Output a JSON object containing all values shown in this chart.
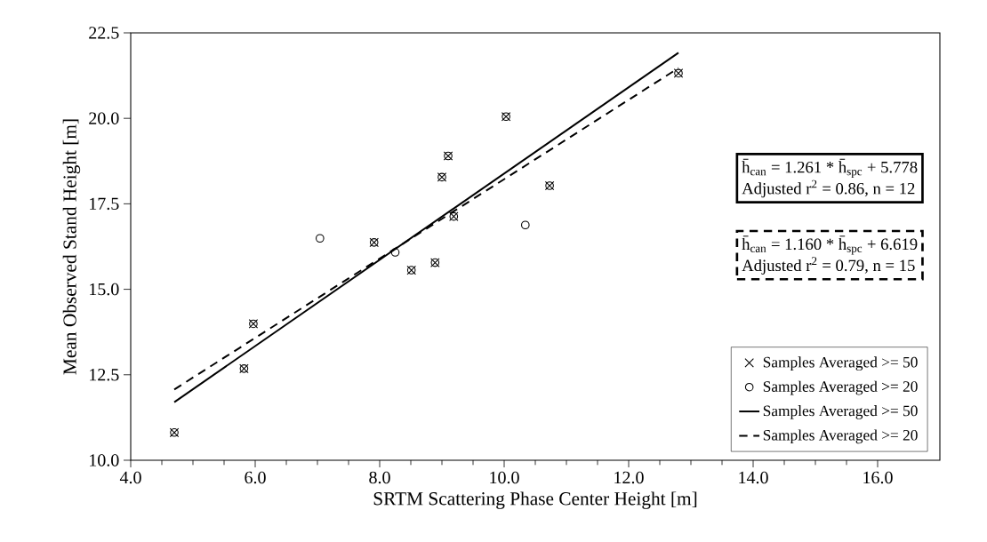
{
  "chart_data": {
    "type": "scatter",
    "xlabel": "SRTM Scattering Phase Center Height  [m]",
    "ylabel": "Mean Observed Stand Height [m]",
    "xlim": [
      4,
      17
    ],
    "ylim": [
      10,
      22.5
    ],
    "xticks": [
      {
        "value": 4,
        "label": "4.0"
      },
      {
        "value": 6,
        "label": "6.0"
      },
      {
        "value": 8,
        "label": "8.0"
      },
      {
        "value": 10,
        "label": "10.0"
      },
      {
        "value": 12,
        "label": "12.0"
      },
      {
        "value": 14,
        "label": "14.0"
      },
      {
        "value": 16,
        "label": "16.0"
      }
    ],
    "yticks": [
      {
        "value": 10,
        "label": "10.0"
      },
      {
        "value": 12.5,
        "label": "12.5"
      },
      {
        "value": 15,
        "label": "15.0"
      },
      {
        "value": 17.5,
        "label": "17.5"
      },
      {
        "value": 20,
        "label": "20.0"
      },
      {
        "value": 22.5,
        "label": "22.5"
      }
    ],
    "grid": false,
    "legend": "bottom right",
    "series": [
      {
        "name": "Samples Averaged >= 50",
        "marker": "cross",
        "color": "#000000",
        "x": [
          4.7,
          5.82,
          5.97,
          7.91,
          8.51,
          8.89,
          9.0,
          9.1,
          9.19,
          10.03,
          10.73,
          12.8
        ],
        "values": [
          10.81,
          12.68,
          13.99,
          16.37,
          15.56,
          15.78,
          18.28,
          18.9,
          17.13,
          20.05,
          18.03,
          21.32
        ]
      },
      {
        "name": "Samples Averaged >= 20",
        "marker": "circle",
        "color": "#000000",
        "x": [
          4.7,
          5.82,
          5.97,
          7.04,
          7.91,
          8.25,
          8.51,
          8.89,
          9.0,
          9.1,
          9.19,
          10.03,
          10.34,
          10.73,
          12.8
        ],
        "values": [
          10.81,
          12.68,
          13.99,
          16.49,
          16.37,
          16.08,
          15.56,
          15.78,
          18.28,
          18.9,
          17.13,
          20.05,
          16.88,
          18.03,
          21.32
        ]
      },
      {
        "name": "Samples Averaged >= 50",
        "type": "line",
        "marker": "none",
        "line_style": "solid",
        "color": "#000000",
        "x": [
          4.7,
          12.8
        ],
        "values": [
          11.7,
          21.92
        ]
      },
      {
        "name": "Samples Averaged >= 20",
        "type": "line",
        "marker": "none",
        "line_style": "dashed",
        "color": "#000000",
        "x": [
          4.7,
          12.8
        ],
        "values": [
          12.07,
          21.47
        ]
      }
    ],
    "annotations": [
      "h̄$_{can}$ = 1.261 * h̄$_{spc}$ + 5.778",
      "Adjusted r$^{2}$ = 0.86, n = 12",
      "h̄$_{can}$ = 1.160 * h̄$_{spc}$ + 6.619",
      "Adjusted r$^{2}$ = 0.79, n = 15"
    ]
  }
}
